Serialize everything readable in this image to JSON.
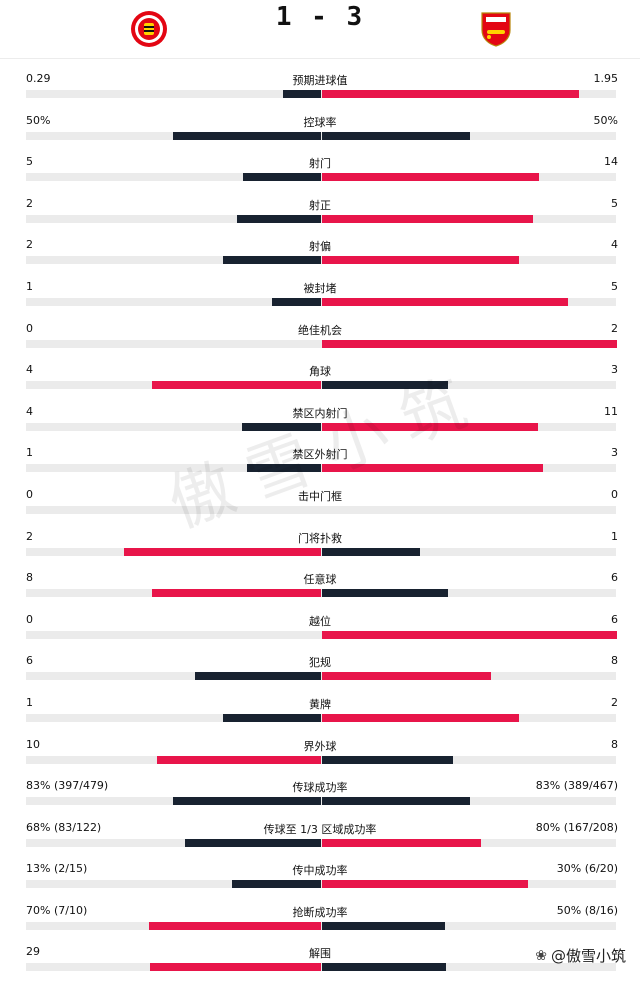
{
  "match": {
    "score": "1 - 3",
    "home_color": "#e8154a",
    "away_color": "#e8154a",
    "home_badge_icon": "brentford-bee-badge",
    "away_badge_icon": "arsenal-cannon-badge"
  },
  "colors": {
    "red": "#e8154a",
    "dark": "#182230",
    "track": "#ebebeb"
  },
  "stats": [
    {
      "label": "预期进球值",
      "home": "0.29",
      "away": "1.95",
      "home_val": 0.29,
      "away_val": 1.95,
      "leader": "away"
    },
    {
      "label": "控球率",
      "home": "50%",
      "away": "50%",
      "home_val": 50,
      "away_val": 50,
      "leader": "none"
    },
    {
      "label": "射门",
      "home": "5",
      "away": "14",
      "home_val": 5,
      "away_val": 14,
      "leader": "away"
    },
    {
      "label": "射正",
      "home": "2",
      "away": "5",
      "home_val": 2,
      "away_val": 5,
      "leader": "away"
    },
    {
      "label": "射偏",
      "home": "2",
      "away": "4",
      "home_val": 2,
      "away_val": 4,
      "leader": "away"
    },
    {
      "label": "被封堵",
      "home": "1",
      "away": "5",
      "home_val": 1,
      "away_val": 5,
      "leader": "away"
    },
    {
      "label": "绝佳机会",
      "home": "0",
      "away": "2",
      "home_val": 0,
      "away_val": 2,
      "leader": "away"
    },
    {
      "label": "角球",
      "home": "4",
      "away": "3",
      "home_val": 4,
      "away_val": 3,
      "leader": "home"
    },
    {
      "label": "禁区内射门",
      "home": "4",
      "away": "11",
      "home_val": 4,
      "away_val": 11,
      "leader": "away"
    },
    {
      "label": "禁区外射门",
      "home": "1",
      "away": "3",
      "home_val": 1,
      "away_val": 3,
      "leader": "away"
    },
    {
      "label": "击中门框",
      "home": "0",
      "away": "0",
      "home_val": 0,
      "away_val": 0,
      "leader": "none"
    },
    {
      "label": "门将扑救",
      "home": "2",
      "away": "1",
      "home_val": 2,
      "away_val": 1,
      "leader": "home"
    },
    {
      "label": "任意球",
      "home": "8",
      "away": "6",
      "home_val": 8,
      "away_val": 6,
      "leader": "home"
    },
    {
      "label": "越位",
      "home": "0",
      "away": "6",
      "home_val": 0,
      "away_val": 6,
      "leader": "away"
    },
    {
      "label": "犯规",
      "home": "6",
      "away": "8",
      "home_val": 6,
      "away_val": 8,
      "leader": "away"
    },
    {
      "label": "黄牌",
      "home": "1",
      "away": "2",
      "home_val": 1,
      "away_val": 2,
      "leader": "away"
    },
    {
      "label": "界外球",
      "home": "10",
      "away": "8",
      "home_val": 10,
      "away_val": 8,
      "leader": "home"
    },
    {
      "label": "传球成功率",
      "home": "83% (397/479)",
      "away": "83% (389/467)",
      "home_val": 83,
      "away_val": 83,
      "leader": "none"
    },
    {
      "label": "传球至 1/3 区域成功率",
      "home": "68% (83/122)",
      "away": "80% (167/208)",
      "home_val": 68,
      "away_val": 80,
      "leader": "away"
    },
    {
      "label": "传中成功率",
      "home": "13% (2/15)",
      "away": "30% (6/20)",
      "home_val": 13,
      "away_val": 30,
      "leader": "away"
    },
    {
      "label": "抢断成功率",
      "home": "70% (7/10)",
      "away": "50% (8/16)",
      "home_val": 70,
      "away_val": 50,
      "leader": "home"
    },
    {
      "label": "解围",
      "home": "29",
      "away": "",
      "home_val": 29,
      "away_val": 21,
      "leader": "home"
    }
  ],
  "watermark": {
    "text": "傲雪小筑",
    "tag": "@傲雪小筑",
    "icon": "paw-icon"
  }
}
